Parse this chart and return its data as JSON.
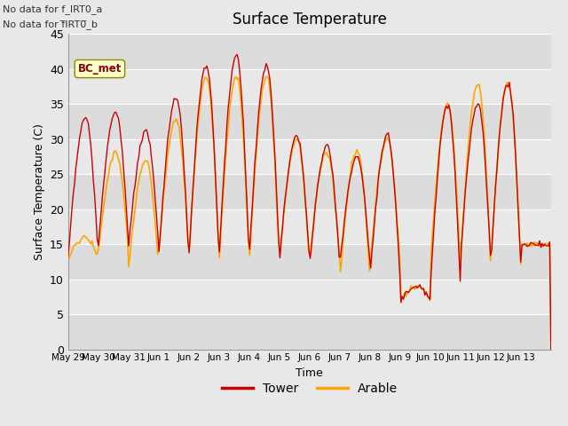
{
  "title": "Surface Temperature",
  "xlabel": "Time",
  "ylabel": "Surface Temperature (C)",
  "ylim": [
    0,
    45
  ],
  "yticks": [
    0,
    5,
    10,
    15,
    20,
    25,
    30,
    35,
    40,
    45
  ],
  "fig_bg_color": "#e8e8e8",
  "plot_bg_color": "#e8e8e8",
  "tower_color": "#cc0000",
  "arable_color": "#ffa500",
  "annotation_text1": "No data for f_IRT0_a",
  "annotation_text2": "No data for f̅IRT0̅_b",
  "bc_met_label": "BC_met",
  "legend_labels": [
    "Tower",
    "Arable"
  ],
  "x_tick_labels": [
    "May 29",
    "May 30",
    "May 31",
    "Jun 1",
    "Jun 2",
    "Jun 3",
    "Jun 4",
    "Jun 5",
    "Jun 6",
    "Jun 7",
    "Jun 8",
    "Jun 9",
    "Jun 10",
    "Jun 11",
    "Jun 12",
    "Jun 13"
  ],
  "n_days": 16
}
